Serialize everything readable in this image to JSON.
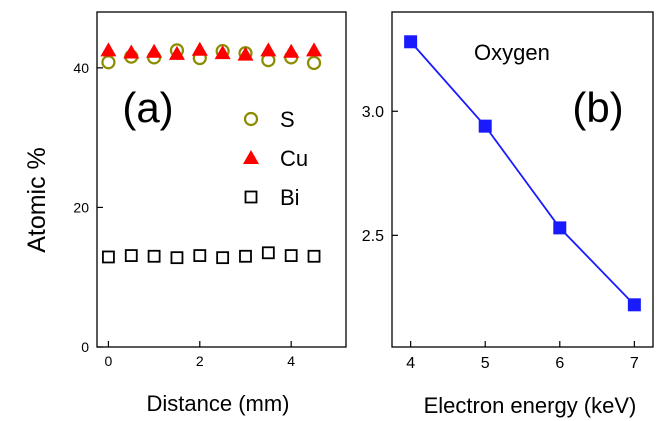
{
  "chart_data": [
    {
      "panel_label": "(a)",
      "type": "scatter",
      "xlabel": "Distance (mm)",
      "ylabel": "Atomic %",
      "xlim": [
        -0.25,
        5.2
      ],
      "ylim": [
        0,
        48
      ],
      "x_ticks": [
        0,
        2,
        4
      ],
      "y_ticks": [
        0,
        20,
        40
      ],
      "x_tick_labels": [
        "0",
        "2",
        "4"
      ],
      "y_tick_labels": [
        "0",
        "20",
        "40"
      ],
      "legend_position": "right",
      "series": [
        {
          "name": "S",
          "marker": "circle-open",
          "color": "#8c8c00",
          "x": [
            0,
            0.5,
            1,
            1.5,
            2,
            2.5,
            3,
            3.5,
            4,
            4.5
          ],
          "y": [
            40.8,
            41.6,
            41.5,
            42.5,
            41.4,
            42.4,
            42.1,
            41.1,
            41.5,
            40.7
          ]
        },
        {
          "name": "Cu",
          "marker": "triangle-filled",
          "color": "#ff0000",
          "x": [
            0,
            0.5,
            1,
            1.5,
            2,
            2.5,
            3,
            3.5,
            4,
            4.5
          ],
          "y": [
            42.5,
            42.2,
            42.3,
            42.0,
            42.6,
            42.1,
            41.9,
            42.5,
            42.3,
            42.5
          ]
        },
        {
          "name": "Bi",
          "marker": "square-open",
          "color": "#000000",
          "x": [
            0,
            0.5,
            1,
            1.5,
            2,
            2.5,
            3,
            3.5,
            4,
            4.5
          ],
          "y": [
            12.9,
            13.1,
            13.0,
            12.8,
            13.1,
            12.8,
            13.0,
            13.5,
            13.1,
            13.0
          ]
        }
      ]
    },
    {
      "panel_label": "(b)",
      "type": "line",
      "annotation": "Oxygen",
      "xlabel": "Electron energy (keV)",
      "ylabel": "",
      "xlim": [
        3.75,
        7.25
      ],
      "ylim": [
        2.05,
        3.4
      ],
      "x_ticks": [
        4,
        5,
        6,
        7
      ],
      "y_ticks": [
        2.5,
        3.0
      ],
      "x_tick_labels": [
        "4",
        "5",
        "6",
        "7"
      ],
      "y_tick_labels": [
        "2.5",
        "3.0"
      ],
      "series": [
        {
          "marker": "square-filled",
          "color": "#1a1aff",
          "x": [
            4,
            5,
            6,
            7
          ],
          "y": [
            3.28,
            2.94,
            2.53,
            2.22
          ]
        }
      ]
    }
  ]
}
